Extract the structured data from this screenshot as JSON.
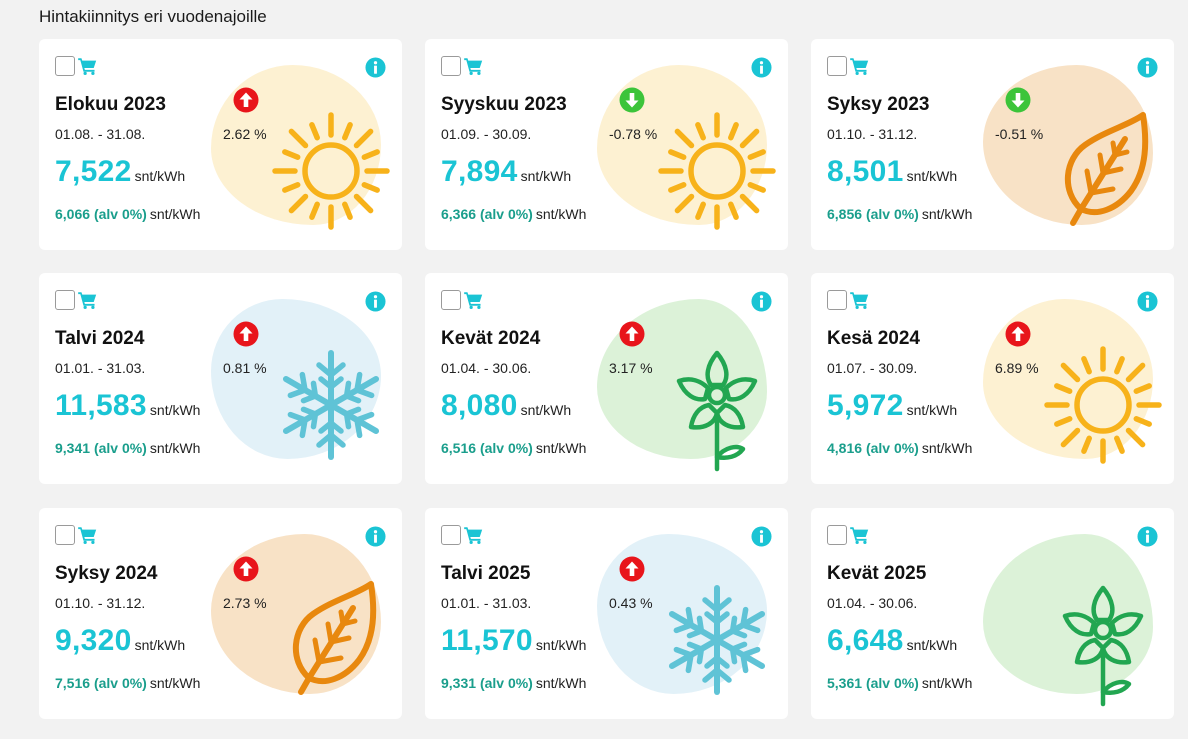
{
  "page": {
    "title": "Hintakiinnitys eri vuodenajoille"
  },
  "colors": {
    "accent": "#1ac4d4",
    "vat": "#1a9e8c",
    "up": "#e8151b",
    "down": "#3cc43a",
    "summer_blob": "#fdf1d2",
    "autumn_blob": "#f8e2c6",
    "winter_blob": "#e2f1f8",
    "spring_blob": "#dcf2d8"
  },
  "cards": [
    {
      "title": "Elokuu 2023",
      "dates": "01.08. - 31.08.",
      "price": "7,522",
      "unit": "snt/kWh",
      "vat_price": "6,066",
      "vat_label": "(alv 0%)",
      "vat_unit": "snt/kWh",
      "trend": "up",
      "trend_icon": "arrow-up-icon",
      "percent": "2.62 %",
      "season": "summer",
      "season_icon": "sun-icon"
    },
    {
      "title": "Syyskuu 2023",
      "dates": "01.09. - 30.09.",
      "price": "7,894",
      "unit": "snt/kWh",
      "vat_price": "6,366",
      "vat_label": "(alv 0%)",
      "vat_unit": "snt/kWh",
      "trend": "down",
      "trend_icon": "arrow-down-icon",
      "percent": "-0.78 %",
      "season": "summer",
      "season_icon": "sun-icon"
    },
    {
      "title": "Syksy 2023",
      "dates": "01.10. - 31.12.",
      "price": "8,501",
      "unit": "snt/kWh",
      "vat_price": "6,856",
      "vat_label": "(alv 0%)",
      "vat_unit": "snt/kWh",
      "trend": "down",
      "trend_icon": "arrow-down-icon",
      "percent": "-0.51 %",
      "season": "autumn",
      "season_icon": "leaf-icon"
    },
    {
      "title": "Talvi 2024",
      "dates": "01.01. - 31.03.",
      "price": "11,583",
      "unit": "snt/kWh",
      "vat_price": "9,341",
      "vat_label": "(alv 0%)",
      "vat_unit": "snt/kWh",
      "trend": "up",
      "trend_icon": "arrow-up-icon",
      "percent": "0.81 %",
      "season": "winter",
      "season_icon": "snowflake-icon"
    },
    {
      "title": "Kevät 2024",
      "dates": "01.04. - 30.06.",
      "price": "8,080",
      "unit": "snt/kWh",
      "vat_price": "6,516",
      "vat_label": "(alv 0%)",
      "vat_unit": "snt/kWh",
      "trend": "up",
      "trend_icon": "arrow-up-icon",
      "percent": "3.17 %",
      "season": "spring",
      "season_icon": "flower-icon"
    },
    {
      "title": "Kesä 2024",
      "dates": "01.07. - 30.09.",
      "price": "5,972",
      "unit": "snt/kWh",
      "vat_price": "4,816",
      "vat_label": "(alv 0%)",
      "vat_unit": "snt/kWh",
      "trend": "up",
      "trend_icon": "arrow-up-icon",
      "percent": "6.89 %",
      "season": "summer",
      "season_icon": "sun-icon"
    },
    {
      "title": "Syksy 2024",
      "dates": "01.10. - 31.12.",
      "price": "9,320",
      "unit": "snt/kWh",
      "vat_price": "7,516",
      "vat_label": "(alv 0%)",
      "vat_unit": "snt/kWh",
      "trend": "up",
      "trend_icon": "arrow-up-icon",
      "percent": "2.73 %",
      "season": "autumn",
      "season_icon": "leaf-icon"
    },
    {
      "title": "Talvi 2025",
      "dates": "01.01. - 31.03.",
      "price": "11,570",
      "unit": "snt/kWh",
      "vat_price": "9,331",
      "vat_label": "(alv 0%)",
      "vat_unit": "snt/kWh",
      "trend": "up",
      "trend_icon": "arrow-up-icon",
      "percent": "0.43 %",
      "season": "winter",
      "season_icon": "snowflake-icon"
    },
    {
      "title": "Kevät 2025",
      "dates": "01.04. - 30.06.",
      "price": "6,648",
      "unit": "snt/kWh",
      "vat_price": "5,361",
      "vat_label": "(alv 0%)",
      "vat_unit": "snt/kWh",
      "trend": "none",
      "trend_icon": "",
      "percent": "",
      "season": "spring",
      "season_icon": "flower-icon"
    }
  ]
}
